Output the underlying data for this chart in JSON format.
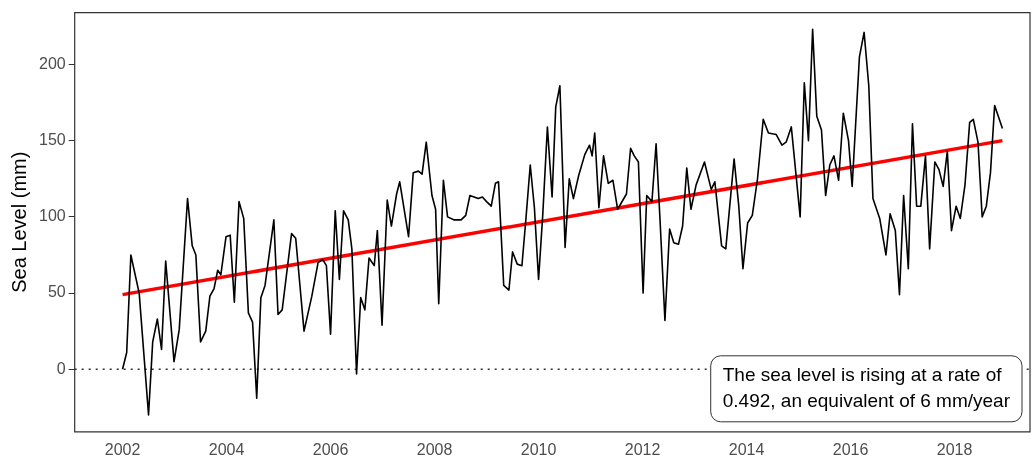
{
  "chart_data": {
    "type": "line",
    "ylabel": "Sea Level (mm)",
    "xlim": [
      2001.08,
      2019.45
    ],
    "ylim": [
      -41,
      234
    ],
    "xticks": [
      2002,
      2004,
      2006,
      2008,
      2010,
      2012,
      2014,
      2016,
      2018
    ],
    "yticks": [
      0,
      50,
      100,
      150,
      200
    ],
    "grid": false,
    "legend": false,
    "marker": "none",
    "line_style": "solid",
    "series": [
      {
        "color": "#000000",
        "x": [
          2002.0,
          2002.08,
          2002.16,
          2002.32,
          2002.5,
          2002.58,
          2002.67,
          2002.75,
          2002.83,
          2002.99,
          2003.09,
          2003.25,
          2003.34,
          2003.41,
          2003.5,
          2003.6,
          2003.68,
          2003.76,
          2003.83,
          2003.89,
          2003.99,
          2004.07,
          2004.15,
          2004.24,
          2004.33,
          2004.42,
          2004.5,
          2004.58,
          2004.66,
          2004.74,
          2004.91,
          2004.99,
          2005.07,
          2005.25,
          2005.33,
          2005.49,
          2005.64,
          2005.76,
          2005.85,
          2005.92,
          2006.0,
          2006.09,
          2006.17,
          2006.25,
          2006.34,
          2006.41,
          2006.5,
          2006.58,
          2006.66,
          2006.74,
          2006.84,
          2006.9,
          2006.99,
          2007.09,
          2007.17,
          2007.27,
          2007.33,
          2007.5,
          2007.59,
          2007.69,
          2007.76,
          2007.84,
          2007.95,
          2008.02,
          2008.08,
          2008.17,
          2008.25,
          2008.38,
          2008.51,
          2008.6,
          2008.68,
          2008.76,
          2008.84,
          2008.92,
          2009.0,
          2009.09,
          2009.17,
          2009.23,
          2009.33,
          2009.43,
          2009.5,
          2009.59,
          2009.68,
          2009.76,
          2009.84,
          2009.92,
          2010.0,
          2010.08,
          2010.17,
          2010.26,
          2010.33,
          2010.41,
          2010.51,
          2010.59,
          2010.67,
          2010.77,
          2010.89,
          2010.98,
          2011.03,
          2011.08,
          2011.16,
          2011.25,
          2011.34,
          2011.43,
          2011.52,
          2011.69,
          2011.77,
          2011.84,
          2011.92,
          2012.01,
          2012.08,
          2012.18,
          2012.26,
          2012.34,
          2012.43,
          2012.52,
          2012.6,
          2012.69,
          2012.77,
          2012.85,
          2012.93,
          2013.03,
          2013.19,
          2013.32,
          2013.39,
          2013.52,
          2013.6,
          2013.76,
          2013.85,
          2013.93,
          2014.02,
          2014.11,
          2014.21,
          2014.32,
          2014.42,
          2014.57,
          2014.68,
          2014.76,
          2014.86,
          2015.03,
          2015.11,
          2015.19,
          2015.27,
          2015.35,
          2015.44,
          2015.52,
          2015.6,
          2015.68,
          2015.77,
          2015.86,
          2015.96,
          2016.03,
          2016.17,
          2016.26,
          2016.35,
          2016.43,
          2016.56,
          2016.68,
          2016.76,
          2016.86,
          2016.94,
          2017.02,
          2017.11,
          2017.19,
          2017.27,
          2017.35,
          2017.44,
          2017.52,
          2017.62,
          2017.7,
          2017.78,
          2017.86,
          2017.94,
          2018.03,
          2018.11,
          2018.2,
          2018.29,
          2018.36,
          2018.45,
          2018.53,
          2018.61,
          2018.69,
          2018.77,
          2018.92
        ],
        "values": [
          0,
          11,
          75,
          50,
          -30,
          18,
          33,
          13,
          71,
          5,
          26,
          112,
          81,
          75,
          18,
          25,
          48,
          53,
          65,
          62,
          87,
          88,
          44,
          110,
          99,
          37,
          31,
          -19,
          47,
          55,
          98,
          36,
          39,
          89,
          86,
          25,
          48,
          70,
          72,
          68,
          23,
          104,
          59,
          104,
          98,
          79,
          -3,
          47,
          39,
          73,
          68,
          91,
          29,
          111,
          94,
          115,
          123,
          87,
          129,
          130,
          128,
          149,
          114,
          105,
          43,
          124,
          100,
          98,
          98,
          101,
          114,
          113,
          112,
          113,
          110,
          107,
          122,
          123,
          55,
          52,
          77,
          69,
          68,
          100,
          134,
          106,
          59,
          101,
          159,
          113,
          172,
          186,
          80,
          125,
          112,
          127,
          141,
          147,
          140,
          155,
          106,
          140,
          122,
          124,
          105,
          115,
          145,
          140,
          136,
          50,
          114,
          110,
          148,
          95,
          32,
          92,
          83,
          82,
          94,
          132,
          105,
          121,
          136,
          118,
          123,
          81,
          79,
          138,
          107,
          66,
          96,
          101,
          125,
          164,
          155,
          154,
          147,
          149,
          159,
          100,
          188,
          150,
          223,
          166,
          157,
          114,
          134,
          140,
          124,
          168,
          150,
          120,
          205,
          221,
          186,
          112,
          99,
          75,
          102,
          91,
          49,
          114,
          66,
          161,
          107,
          107,
          140,
          79,
          136,
          131,
          120,
          143,
          91,
          107,
          99,
          121,
          162,
          164,
          149,
          100,
          107,
          129,
          173,
          158
        ]
      },
      {
        "type": "line",
        "color": "#ff0000",
        "x": [
          2002.0,
          2018.92
        ],
        "values": [
          49,
          150
        ]
      }
    ],
    "ref_lines": [
      {
        "axis": "y",
        "value": 0,
        "color": "#333333",
        "line_style": "dotted"
      }
    ],
    "annotations": [
      "The sea level is rising at a rate of 0.492, an equivalent of 6 mm/year"
    ]
  }
}
